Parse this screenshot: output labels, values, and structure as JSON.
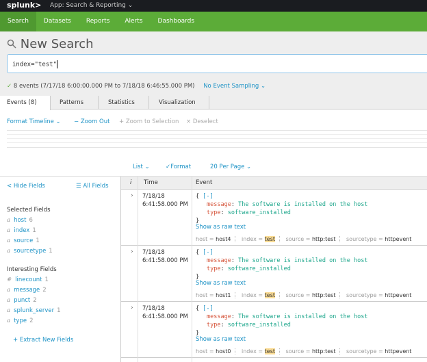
{
  "topbar": {
    "logo": "splunk>",
    "app": "App: Search & Reporting ⌄"
  },
  "nav": [
    "Search",
    "Datasets",
    "Reports",
    "Alerts",
    "Dashboards"
  ],
  "title": "New Search",
  "search": {
    "query": "index=\"test\""
  },
  "status": {
    "summary": "8 events (7/17/18 6:00:00.000 PM to 7/18/18 6:46:55.000 PM)",
    "sampling": "No Event Sampling ⌄"
  },
  "tabs": [
    "Events (8)",
    "Patterns",
    "Statistics",
    "Visualization"
  ],
  "timeline": {
    "format": "Format Timeline ⌄",
    "zoom_out": "− Zoom Out",
    "zoom_sel": "+ Zoom to Selection",
    "deselect": "× Deselect"
  },
  "results_bar": {
    "list": "List ⌄",
    "format": "✓Format",
    "per_page": "20 Per Page ⌄"
  },
  "sidebar": {
    "hide": "< Hide Fields",
    "all": "☰ All Fields",
    "selected_title": "Selected Fields",
    "selected": [
      {
        "t": "a",
        "n": "host",
        "c": "6"
      },
      {
        "t": "a",
        "n": "index",
        "c": "1"
      },
      {
        "t": "a",
        "n": "source",
        "c": "1"
      },
      {
        "t": "a",
        "n": "sourcetype",
        "c": "1"
      }
    ],
    "interesting_title": "Interesting Fields",
    "interesting": [
      {
        "t": "#",
        "n": "linecount",
        "c": "1"
      },
      {
        "t": "a",
        "n": "message",
        "c": "2"
      },
      {
        "t": "a",
        "n": "punct",
        "c": "2"
      },
      {
        "t": "a",
        "n": "splunk_server",
        "c": "1"
      },
      {
        "t": "a",
        "n": "type",
        "c": "2"
      }
    ],
    "extract": "+ Extract New Fields"
  },
  "table": {
    "headers": [
      "i",
      "Time",
      "Event"
    ],
    "rows": [
      {
        "date": "7/18/18",
        "time": "6:41:58.000 PM",
        "message": "The software is installed on the host",
        "type": "software_installed",
        "host": "host4",
        "index": "test",
        "source": "http:test",
        "sourcetype": "httpevent"
      },
      {
        "date": "7/18/18",
        "time": "6:41:58.000 PM",
        "message": "The software is installed on the host",
        "type": "software_installed",
        "host": "host1",
        "index": "test",
        "source": "http:test",
        "sourcetype": "httpevent"
      },
      {
        "date": "7/18/18",
        "time": "6:41:58.000 PM",
        "message": "The software is installed on the host",
        "type": "software_installed",
        "host": "host0",
        "index": "test",
        "source": "http:test",
        "sourcetype": "httpevent"
      }
    ],
    "labels": {
      "open": "{",
      "collapse": "[-]",
      "close": "}",
      "message_key": "message",
      "type_key": "type",
      "raw": "Show as raw text",
      "host": "host",
      "index": "index",
      "source": "source",
      "sourcetype": "sourcetype"
    }
  }
}
